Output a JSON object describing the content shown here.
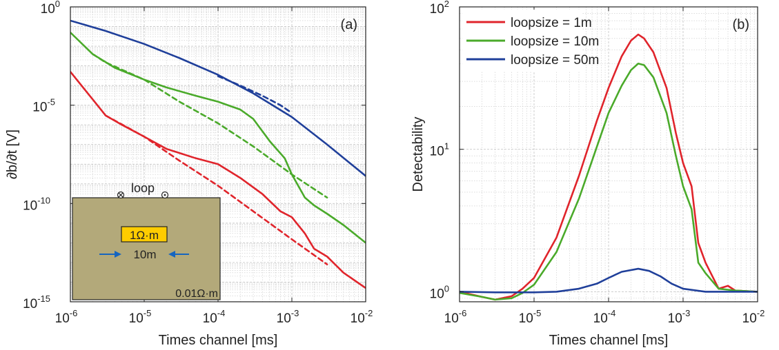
{
  "chart_data": [
    {
      "type": "line",
      "panel_label": "(a)",
      "xlabel": "Times channel [ms]",
      "ylabel": "∂b/∂t [V]",
      "x_scale": "log",
      "y_scale": "log",
      "xlim": [
        1e-06,
        0.01
      ],
      "ylim": [
        1e-15,
        1
      ],
      "x_ticks": [
        {
          "value": 1e-06,
          "base": "10",
          "exp": "-6"
        },
        {
          "value": 1e-05,
          "base": "10",
          "exp": "-5"
        },
        {
          "value": 0.0001,
          "base": "10",
          "exp": "-4"
        },
        {
          "value": 0.001,
          "base": "10",
          "exp": "-3"
        },
        {
          "value": 0.01,
          "base": "10",
          "exp": "-2"
        }
      ],
      "y_ticks": [
        {
          "value": 1,
          "base": "10",
          "exp": "0"
        },
        {
          "value": 1e-05,
          "base": "10",
          "exp": "-5"
        },
        {
          "value": 1e-10,
          "base": "10",
          "exp": "-10"
        },
        {
          "value": 1e-15,
          "base": "10",
          "exp": "-15"
        }
      ],
      "grid": true,
      "series": [
        {
          "color": "#1f3f9a",
          "style": "solid",
          "x": [
            1e-06,
            3e-06,
            1e-05,
            3e-05,
            0.0001,
            0.0003,
            0.001,
            0.003,
            0.01
          ],
          "y": [
            0.2,
            0.06,
            0.013,
            0.0025,
            0.00035,
            4e-05,
            2.5e-06,
            1e-07,
            2.5e-09
          ]
        },
        {
          "color": "#1f3f9a",
          "style": "dashed",
          "x": [
            0.0001,
            0.0002,
            0.0004,
            0.0007,
            0.001
          ],
          "y": [
            0.0003,
            0.0001,
            3e-05,
            1e-05,
            4e-06
          ]
        },
        {
          "color": "#4aaa2a",
          "style": "solid",
          "x": [
            1e-06,
            2e-06,
            4e-06,
            1e-05,
            2e-05,
            5e-05,
            0.0001,
            0.0002,
            0.0003,
            0.0005,
            0.0008,
            0.001,
            0.0015,
            0.002,
            0.003,
            0.005,
            0.01
          ],
          "y": [
            0.05,
            0.004,
            0.0008,
            0.0002,
            8e-05,
            3e-05,
            1.5e-05,
            6e-06,
            2e-06,
            1.5e-07,
            2e-08,
            3e-09,
            2e-10,
            8e-11,
            3e-11,
            8e-12,
            1e-12
          ]
        },
        {
          "color": "#4aaa2a",
          "style": "dashed",
          "x": [
            2e-06,
            3e-06,
            1e-05,
            3e-05,
            0.0001,
            0.0003,
            0.001,
            0.003
          ],
          "y": [
            0.004,
            0.0015,
            0.0002,
            1.5e-05,
            1.2e-06,
            8e-08,
            3e-09,
            2e-10
          ]
        },
        {
          "color": "#e0242b",
          "style": "solid",
          "x": [
            1e-06,
            2e-06,
            3e-06,
            5e-06,
            1e-05,
            2e-05,
            5e-05,
            0.0001,
            0.0002,
            0.0004,
            0.0007,
            0.001,
            0.0015,
            0.002,
            0.003,
            0.005,
            0.01
          ],
          "y": [
            0.0005,
            2e-05,
            3e-06,
            1e-06,
            2.5e-07,
            6e-08,
            2e-08,
            1e-08,
            2e-09,
            3e-10,
            4e-11,
            2e-11,
            3e-12,
            5e-13,
            2e-13,
            3e-14,
            5e-15
          ]
        },
        {
          "color": "#e0242b",
          "style": "dashed",
          "x": [
            3e-06,
            1e-05,
            3e-05,
            0.0001,
            0.0003,
            0.001,
            0.003
          ],
          "y": [
            3e-06,
            2.5e-07,
            1.5e-08,
            8e-10,
            4e-11,
            1.5e-12,
            8e-14
          ]
        }
      ],
      "inset": {
        "loop_label": "loop",
        "block_label": "1Ω·m",
        "size_label": "10m",
        "background_label": "0.01Ω·m",
        "fill_color": "#b3a97a",
        "block_color": "#ffcc00",
        "arrow_color": "#1565c0"
      }
    },
    {
      "type": "line",
      "panel_label": "(b)",
      "xlabel": "Times channel [ms]",
      "ylabel": "Detectability",
      "x_scale": "log",
      "y_scale": "log",
      "xlim": [
        1e-06,
        0.01
      ],
      "ylim": [
        0.85,
        100
      ],
      "x_ticks": [
        {
          "value": 1e-06,
          "base": "10",
          "exp": "-6"
        },
        {
          "value": 1e-05,
          "base": "10",
          "exp": "-5"
        },
        {
          "value": 0.0001,
          "base": "10",
          "exp": "-4"
        },
        {
          "value": 0.001,
          "base": "10",
          "exp": "-3"
        },
        {
          "value": 0.01,
          "base": "10",
          "exp": "-2"
        }
      ],
      "y_ticks": [
        {
          "value": 100,
          "base": "10",
          "exp": "2"
        },
        {
          "value": 10,
          "base": "10",
          "exp": "1"
        },
        {
          "value": 1,
          "base": "10",
          "exp": "0"
        }
      ],
      "grid": true,
      "legend_position": "top-left",
      "series": [
        {
          "name": "loopsize = 1m",
          "color": "#e0242b",
          "x": [
            1e-06,
            2e-06,
            3e-06,
            5e-06,
            7e-06,
            1e-05,
            2e-05,
            4e-05,
            7e-05,
            0.0001,
            0.00015,
            0.0002,
            0.00025,
            0.0003,
            0.0004,
            0.0006,
            0.0008,
            0.001,
            0.0013,
            0.0016,
            0.002,
            0.003,
            0.004,
            0.005,
            0.01
          ],
          "y": [
            1.0,
            0.92,
            0.88,
            0.93,
            1.05,
            1.25,
            2.4,
            6.5,
            16,
            27,
            45,
            58,
            64,
            60,
            48,
            27,
            13,
            8,
            5.5,
            2.2,
            1.6,
            1.05,
            1.1,
            1.02,
            1.0
          ]
        },
        {
          "name": "loopsize = 10m",
          "color": "#4aaa2a",
          "x": [
            1e-06,
            2e-06,
            3e-06,
            5e-06,
            7e-06,
            1e-05,
            2e-05,
            4e-05,
            7e-05,
            0.0001,
            0.00015,
            0.0002,
            0.00025,
            0.0003,
            0.0004,
            0.0006,
            0.0008,
            0.001,
            0.0013,
            0.0016,
            0.002,
            0.003,
            0.005,
            0.01
          ],
          "y": [
            0.98,
            0.92,
            0.88,
            0.9,
            0.98,
            1.12,
            1.9,
            4.5,
            10.5,
            18,
            28,
            36,
            40,
            39,
            32,
            18,
            9,
            5.5,
            3.8,
            1.6,
            1.35,
            1.05,
            1.02,
            1.0
          ]
        },
        {
          "name": "loopsize = 50m",
          "color": "#1f3f9a",
          "x": [
            1e-06,
            3e-06,
            1e-05,
            2e-05,
            4e-05,
            7e-05,
            0.0001,
            0.00015,
            0.00025,
            0.00035,
            0.0005,
            0.0007,
            0.001,
            0.002,
            0.005,
            0.01
          ],
          "y": [
            1.0,
            0.99,
            0.99,
            1.0,
            1.05,
            1.14,
            1.25,
            1.38,
            1.45,
            1.4,
            1.28,
            1.14,
            1.05,
            1.0,
            1.0,
            1.0
          ]
        }
      ]
    }
  ]
}
